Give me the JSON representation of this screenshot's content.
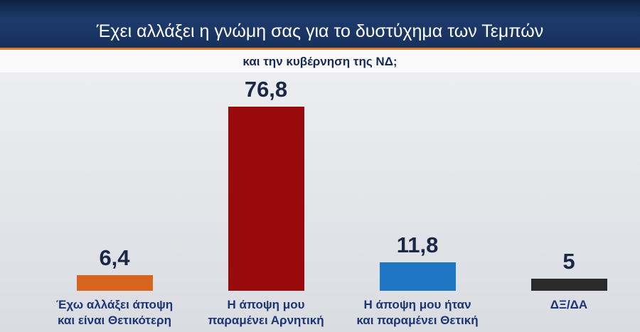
{
  "chart_data": {
    "type": "bar",
    "title": "Έχει αλλάξει η γνώμη σας για το δυστύχημα των Τεμπών",
    "subtitle": "και την κυβέρνηση της ΝΔ;",
    "categories": [
      "Έχω αλλάξει άποψη\nκαι είναι Θετικότερη",
      "Η άποψη μου\nπαραμένει Αρνητική",
      "Η άποψη μου ήταν\nκαι παραμένει Θετική",
      "ΔΞ/ΔΑ"
    ],
    "values": [
      6.4,
      76.8,
      11.8,
      5
    ],
    "value_labels": [
      "6,4",
      "76,8",
      "11,8",
      "5"
    ],
    "colors": [
      "#d6641f",
      "#990a0c",
      "#1f77c4",
      "#2b2b2b"
    ]
  }
}
